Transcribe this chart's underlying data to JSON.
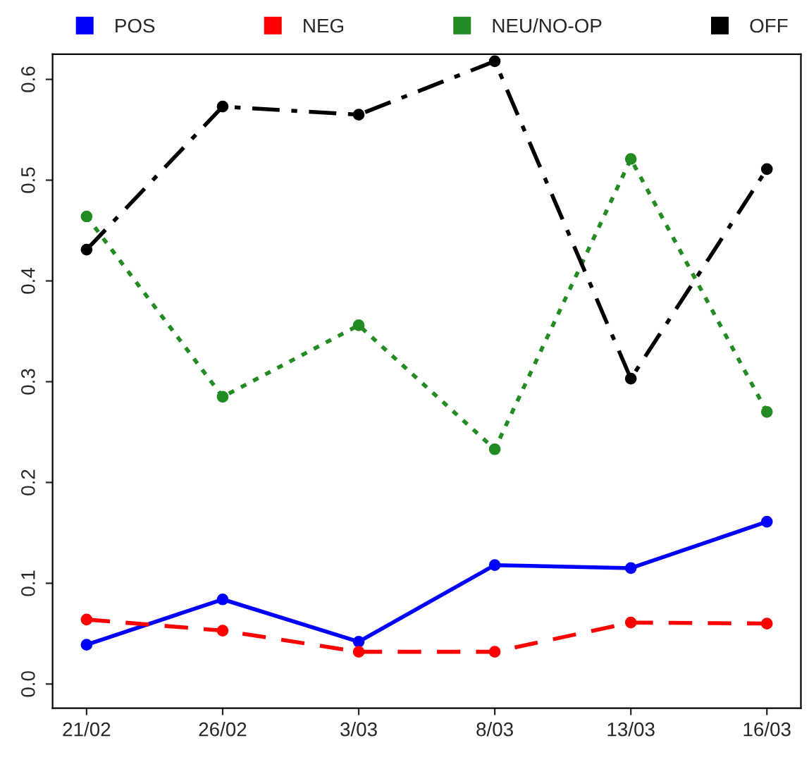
{
  "chart_data": {
    "type": "line",
    "categories": [
      "21/02",
      "26/02",
      "3/03",
      "8/03",
      "13/03",
      "16/03"
    ],
    "series": [
      {
        "name": "POS",
        "color": "#0000ff",
        "line_style": "solid",
        "values": [
          0.039,
          0.084,
          0.042,
          0.118,
          0.115,
          0.161
        ]
      },
      {
        "name": "NEG",
        "color": "#ff0000",
        "line_style": "dashed",
        "values": [
          0.064,
          0.053,
          0.032,
          0.032,
          0.061,
          0.06
        ]
      },
      {
        "name": "NEU/NO-OP",
        "color": "#228b22",
        "line_style": "dotted",
        "values": [
          0.464,
          0.285,
          0.356,
          0.233,
          0.521,
          0.27
        ]
      },
      {
        "name": "OFF",
        "color": "#000000",
        "line_style": "dashdot",
        "values": [
          0.431,
          0.573,
          0.565,
          0.618,
          0.303,
          0.511
        ]
      }
    ],
    "ylim": [
      -0.024,
      0.625
    ],
    "yticks": [
      {
        "value": 0,
        "label": "0.0"
      },
      {
        "value": 0.1,
        "label": "0.1"
      },
      {
        "value": 0.2,
        "label": "0.2"
      },
      {
        "value": 0.3,
        "label": "0.3"
      },
      {
        "value": 0.4,
        "label": "0.4"
      },
      {
        "value": 0.5,
        "label": "0.5"
      },
      {
        "value": 0.6,
        "label": "0.6"
      }
    ],
    "marker": "circle",
    "legend": "top",
    "grid": false
  }
}
